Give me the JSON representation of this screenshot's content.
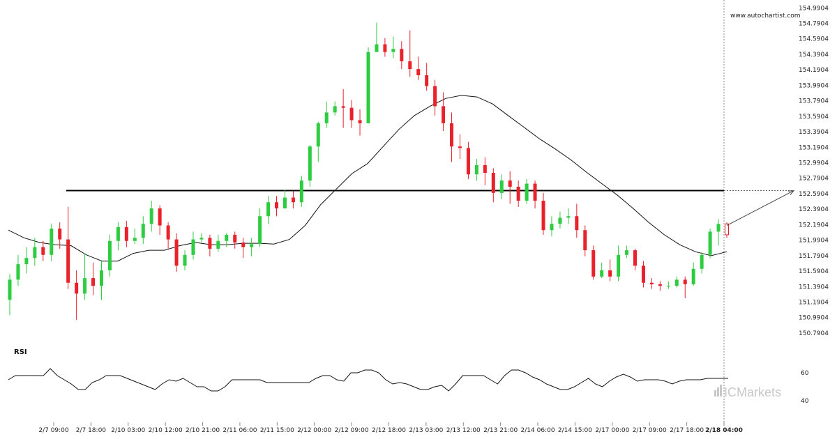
{
  "watermark": "www.autochartist.com",
  "brand": {
    "logo": "ICMarkets",
    "color": "#c8c8c8"
  },
  "colors": {
    "up": "#2ecc40",
    "down": "#e8212b",
    "ma": "#111111",
    "level": "#000000",
    "rsi": "#111111",
    "axis_line": "#888888"
  },
  "chart_data": [
    {
      "type": "candlestick",
      "price_axis": {
        "ticks": [
          "154.9904",
          "154.7904",
          "154.5904",
          "154.3904",
          "154.1904",
          "153.9904",
          "153.7904",
          "153.5904",
          "153.3904",
          "153.1904",
          "152.9904",
          "152.7904",
          "152.5904",
          "152.3904",
          "152.1904",
          "151.9904",
          "151.7904",
          "151.5904",
          "151.3904",
          "151.1904",
          "150.9904",
          "150.7904"
        ],
        "range": [
          150.7,
          155.02
        ]
      },
      "time_axis": {
        "labels": [
          "2/7 09:00",
          "2/7 18:00",
          "2/10 03:00",
          "2/10 12:00",
          "2/10 21:00",
          "2/11 06:00",
          "2/11 15:00",
          "2/12 00:00",
          "2/12 09:00",
          "2/12 18:00",
          "2/13 03:00",
          "2/13 12:00",
          "2/13 21:00",
          "2/14 06:00",
          "2/14 15:00",
          "2/17 00:00",
          "2/17 09:00",
          "2/17 18:00",
          "2/18 04:00"
        ],
        "highlight": "2/18 04:00"
      },
      "support_resistance_level": 152.63,
      "projection": {
        "from": 152.18,
        "to": 152.63
      },
      "moving_average": [
        152.12,
        152.02,
        151.96,
        151.93,
        151.92,
        151.8,
        151.72,
        151.72,
        151.82,
        151.86,
        151.86,
        151.92,
        151.96,
        151.93,
        151.93,
        151.95,
        151.95,
        151.94,
        152.0,
        152.18,
        152.45,
        152.65,
        152.85,
        152.98,
        153.2,
        153.42,
        153.6,
        153.72,
        153.82,
        153.86,
        153.84,
        153.75,
        153.6,
        153.45,
        153.3,
        153.17,
        153.03,
        152.87,
        152.72,
        152.57,
        152.4,
        152.22,
        152.06,
        151.93,
        151.84,
        151.79,
        151.84
      ],
      "candles": [
        [
          151.22,
          151.48,
          151.55,
          151.02
        ],
        [
          151.48,
          151.68,
          151.8,
          151.4
        ],
        [
          151.68,
          151.76,
          151.9,
          151.56
        ],
        [
          151.76,
          151.9,
          152.02,
          151.66
        ],
        [
          151.9,
          151.8,
          151.98,
          151.72
        ],
        [
          151.8,
          152.14,
          152.2,
          151.72
        ],
        [
          152.14,
          152.0,
          152.22,
          151.88
        ],
        [
          152.0,
          151.44,
          152.42,
          151.36
        ],
        [
          151.44,
          151.3,
          151.6,
          150.96
        ],
        [
          151.3,
          151.5,
          151.82,
          151.22
        ],
        [
          151.5,
          151.4,
          151.7,
          151.28
        ],
        [
          151.4,
          151.6,
          151.72,
          151.22
        ],
        [
          151.6,
          151.98,
          152.06,
          151.52
        ],
        [
          151.98,
          152.16,
          152.22,
          151.86
        ],
        [
          152.16,
          151.98,
          152.24,
          151.9
        ],
        [
          151.98,
          152.02,
          152.14,
          151.94
        ],
        [
          152.02,
          152.2,
          152.3,
          151.94
        ],
        [
          152.2,
          152.4,
          152.5,
          152.1
        ],
        [
          152.4,
          152.18,
          152.44,
          152.06
        ],
        [
          152.18,
          152.0,
          152.22,
          151.88
        ],
        [
          152.0,
          151.66,
          152.08,
          151.58
        ],
        [
          151.66,
          151.8,
          151.86,
          151.6
        ],
        [
          151.8,
          152.0,
          152.1,
          151.74
        ],
        [
          152.0,
          152.02,
          152.08,
          151.96
        ],
        [
          152.02,
          151.88,
          152.06,
          151.78
        ],
        [
          151.88,
          151.98,
          152.06,
          151.84
        ],
        [
          151.98,
          152.06,
          152.08,
          151.9
        ],
        [
          152.06,
          151.96,
          152.1,
          151.88
        ],
        [
          151.96,
          151.9,
          152.02,
          151.76
        ],
        [
          151.9,
          151.94,
          152.02,
          151.78
        ],
        [
          151.94,
          152.3,
          152.4,
          151.9
        ],
        [
          152.3,
          152.48,
          152.56,
          152.2
        ],
        [
          152.48,
          152.4,
          152.56,
          152.3
        ],
        [
          152.4,
          152.54,
          152.64,
          152.4
        ],
        [
          152.54,
          152.48,
          152.62,
          152.4
        ],
        [
          152.48,
          152.76,
          152.82,
          152.42
        ],
        [
          152.76,
          153.2,
          153.22,
          152.68
        ],
        [
          153.2,
          153.5,
          153.52,
          153.0
        ],
        [
          153.5,
          153.64,
          153.78,
          153.44
        ],
        [
          153.64,
          153.72,
          153.78,
          153.6
        ],
        [
          153.72,
          153.7,
          153.94,
          153.44
        ],
        [
          153.7,
          153.54,
          153.8,
          153.44
        ],
        [
          153.54,
          153.5,
          153.68,
          153.34
        ],
        [
          153.5,
          154.42,
          154.48,
          153.5
        ],
        [
          154.42,
          154.52,
          154.8,
          154.42
        ],
        [
          154.52,
          154.42,
          154.6,
          154.36
        ],
        [
          154.42,
          154.46,
          154.62,
          154.34
        ],
        [
          154.46,
          154.3,
          154.56,
          154.2
        ],
        [
          154.3,
          154.2,
          154.7,
          154.1
        ],
        [
          154.2,
          154.12,
          154.36,
          154.06
        ],
        [
          154.12,
          153.98,
          154.28,
          153.92
        ],
        [
          153.98,
          153.72,
          154.06,
          153.6
        ],
        [
          153.72,
          153.5,
          153.9,
          153.4
        ],
        [
          153.5,
          153.2,
          153.64,
          153.0
        ],
        [
          153.2,
          153.18,
          153.36,
          153.04
        ],
        [
          153.18,
          152.84,
          153.26,
          152.78
        ],
        [
          152.84,
          152.96,
          153.04,
          152.76
        ],
        [
          152.96,
          152.86,
          153.06,
          152.7
        ],
        [
          152.86,
          152.6,
          152.92,
          152.48
        ],
        [
          152.6,
          152.76,
          152.84,
          152.52
        ],
        [
          152.76,
          152.68,
          152.88,
          152.46
        ],
        [
          152.68,
          152.5,
          152.76,
          152.42
        ],
        [
          152.5,
          152.72,
          152.78,
          152.46
        ],
        [
          152.72,
          152.5,
          152.76,
          152.4
        ],
        [
          152.5,
          152.12,
          152.6,
          152.06
        ],
        [
          152.12,
          152.2,
          152.3,
          152.04
        ],
        [
          152.2,
          152.28,
          152.36,
          152.14
        ],
        [
          152.28,
          152.3,
          152.4,
          152.2
        ],
        [
          152.3,
          152.12,
          152.46,
          152.02
        ],
        [
          152.12,
          151.86,
          152.18,
          151.78
        ],
        [
          151.86,
          151.52,
          151.92,
          151.48
        ],
        [
          151.52,
          151.6,
          151.7,
          151.5
        ],
        [
          151.6,
          151.52,
          151.74,
          151.46
        ],
        [
          151.52,
          151.8,
          151.92,
          151.46
        ],
        [
          151.8,
          151.86,
          151.92,
          151.76
        ],
        [
          151.86,
          151.66,
          151.88,
          151.6
        ],
        [
          151.66,
          151.44,
          151.72,
          151.38
        ],
        [
          151.44,
          151.42,
          151.5,
          151.36
        ],
        [
          151.42,
          151.4,
          151.46,
          151.34
        ],
        [
          151.4,
          151.4,
          151.46,
          151.36
        ],
        [
          151.4,
          151.48,
          151.52,
          151.38
        ],
        [
          151.48,
          151.42,
          151.52,
          151.24
        ],
        [
          151.42,
          151.62,
          151.7,
          151.4
        ],
        [
          151.62,
          151.8,
          151.84,
          151.56
        ],
        [
          151.8,
          152.1,
          152.14,
          151.76
        ],
        [
          152.1,
          152.2,
          152.26,
          151.92
        ],
        [
          152.2,
          152.06,
          152.22,
          152.02
        ]
      ],
      "legend": null
    },
    {
      "type": "line",
      "title": "RSI",
      "y_ticks": [
        "60",
        "40"
      ],
      "range": [
        35,
        70
      ],
      "values": [
        55,
        58,
        58,
        58,
        58,
        58,
        63,
        58,
        55,
        52,
        48,
        48,
        53,
        55,
        58,
        58,
        58,
        56,
        54,
        52,
        50,
        48,
        52,
        55,
        54,
        56,
        53,
        50,
        50,
        47,
        47,
        50,
        55,
        55,
        55,
        55,
        55,
        53,
        53,
        53,
        53,
        53,
        53,
        53,
        56,
        58,
        58,
        55,
        54,
        60,
        60,
        62,
        62,
        60,
        55,
        52,
        53,
        52,
        50,
        48,
        48,
        50,
        51,
        47,
        52,
        58,
        58,
        58,
        58,
        55,
        52,
        58,
        62,
        62,
        60,
        57,
        55,
        52,
        50,
        48,
        48,
        50,
        53,
        56,
        52,
        50,
        54,
        57,
        59,
        57,
        54,
        55,
        55,
        55,
        54,
        52,
        54,
        55,
        55,
        55,
        56,
        56,
        56,
        56
      ]
    }
  ]
}
